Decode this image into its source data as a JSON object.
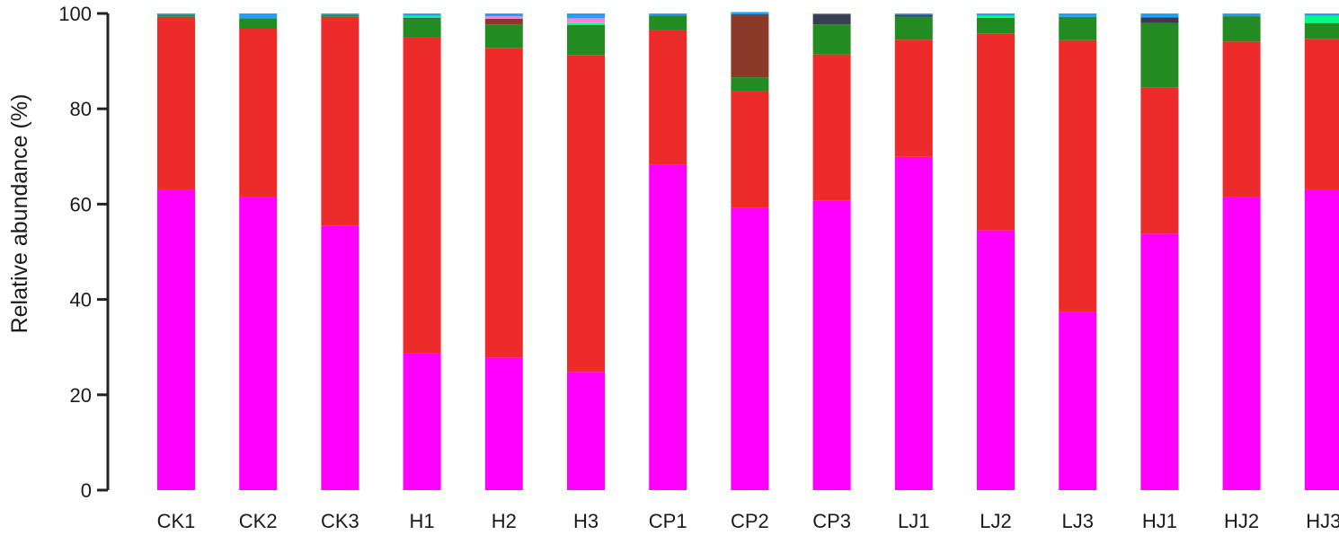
{
  "chart_data": {
    "type": "bar",
    "stacked": true,
    "title": "",
    "xlabel": "",
    "ylabel": "Relative abundance (%)",
    "ylim": [
      0,
      100
    ],
    "yticks": [
      0,
      20,
      40,
      60,
      80,
      100
    ],
    "grid": false,
    "legend": "none",
    "categories": [
      "CK1",
      "CK2",
      "CK3",
      "H1",
      "H2",
      "H3",
      "CP1",
      "CP2",
      "CP3",
      "LJ1",
      "LJ2",
      "LJ3",
      "HJ1",
      "HJ2",
      "HJ3"
    ],
    "series": [
      {
        "color": "#ff00ff",
        "values": [
          63.0,
          61.5,
          55.5,
          28.8,
          27.8,
          24.8,
          68.2,
          59.3,
          60.8,
          69.9,
          54.5,
          37.4,
          53.8,
          61.5,
          63.0
        ]
      },
      {
        "color": "#ee2b2b",
        "values": [
          36.3,
          35.3,
          43.8,
          66.2,
          65.0,
          66.5,
          28.3,
          24.5,
          30.6,
          24.6,
          41.3,
          57.0,
          30.7,
          32.6,
          31.7
        ]
      },
      {
        "color": "#228b22",
        "values": [
          0.4,
          2.2,
          0.4,
          3.9,
          4.9,
          6.3,
          3.1,
          2.8,
          6.3,
          4.8,
          3.3,
          4.9,
          13.5,
          5.3,
          3.3
        ]
      },
      {
        "color": "#8b3a2a",
        "values": [
          0.0,
          0.0,
          0.0,
          0.0,
          1.2,
          0.0,
          0.0,
          12.9,
          0.0,
          0.0,
          0.0,
          0.0,
          0.0,
          0.0,
          0.0
        ]
      },
      {
        "color": "#3a3d4f",
        "values": [
          0.0,
          0.0,
          0.0,
          0.2,
          0.0,
          0.0,
          0.0,
          0.3,
          2.1,
          0.4,
          0.0,
          0.0,
          1.2,
          0.1,
          0.0
        ]
      },
      {
        "color": "#00ff7f",
        "values": [
          0.0,
          0.0,
          0.0,
          0.4,
          0.0,
          0.4,
          0.0,
          0.0,
          0.0,
          0.0,
          0.4,
          0.0,
          0.0,
          0.0,
          1.5
        ]
      },
      {
        "color": "#ff7fd0",
        "values": [
          0.0,
          0.0,
          0.0,
          0.0,
          0.5,
          1.0,
          0.0,
          0.0,
          0.0,
          0.0,
          0.0,
          0.0,
          0.0,
          0.0,
          0.0
        ]
      },
      {
        "color": "#1ea0ff",
        "values": [
          0.3,
          1.0,
          0.3,
          0.5,
          0.6,
          1.0,
          0.4,
          0.5,
          0.2,
          0.3,
          0.5,
          0.7,
          0.8,
          0.5,
          0.5
        ]
      }
    ]
  }
}
